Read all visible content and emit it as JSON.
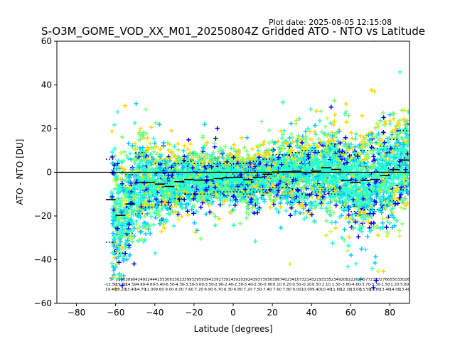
{
  "plot_date": "Plot date: 2025-08-05 12:15:08",
  "chart_data": {
    "type": "scatter",
    "title": "S-O3M_GOME_VOD_XX_M01_20250804Z Gridded ATO - NTO vs Latitude",
    "xlabel": "Latitude [degrees]",
    "ylabel": "ATO - NTO [DU]",
    "xlim": [
      -90,
      90
    ],
    "ylim": [
      -60,
      60
    ],
    "xticks": [
      -80,
      -60,
      -40,
      -20,
      0,
      20,
      40,
      60,
      80
    ],
    "yticks": [
      -60,
      -40,
      -20,
      0,
      20,
      40,
      60
    ],
    "grid": false,
    "legend": "none",
    "colors": {
      "cyan": "#00c8ff",
      "aqua": "#29ffce",
      "lime": "#7dff7a",
      "yellow": "#ffd700",
      "blue": "#0000ff",
      "green": "#c4ff3a"
    },
    "zero_line": 0,
    "bins": [
      {
        "lat": -62.5,
        "mean": -12.5,
        "std": 19.4,
        "p_low": -32,
        "p_high": 6,
        "n": "5"
      },
      {
        "lat": -57.5,
        "mean": -19.7,
        "std": 18.2,
        "p_low": -37,
        "p_high": 0,
        "n": "2108"
      },
      {
        "lat": -52.5,
        "mean": -14.5,
        "std": 13.4,
        "p_low": -28,
        "p_high": -1,
        "n": "3890"
      },
      {
        "lat": -47.5,
        "mean": -4.6,
        "std": 14.7,
        "p_low": -19,
        "p_high": 9,
        "n": "4249"
      },
      {
        "lat": -42.5,
        "mean": -4.6,
        "std": 11.0,
        "p_low": -16,
        "p_high": 7,
        "n": "3244"
      },
      {
        "lat": -37.5,
        "mean": -5.4,
        "std": 9.6,
        "p_low": -15,
        "p_high": 4,
        "n": "4155"
      },
      {
        "lat": -32.5,
        "mean": -6.5,
        "std": 9.0,
        "p_low": -15,
        "p_high": 2,
        "n": "3081"
      },
      {
        "lat": -27.5,
        "mean": -4.3,
        "std": 8.0,
        "p_low": -12,
        "p_high": 4,
        "n": "3023"
      },
      {
        "lat": -22.5,
        "mean": -3.3,
        "std": 7.6,
        "p_low": -10,
        "p_high": 5,
        "n": "3993"
      },
      {
        "lat": -17.5,
        "mean": -3.6,
        "std": 7.2,
        "p_low": -10,
        "p_high": 4,
        "n": "3959"
      },
      {
        "lat": -12.5,
        "mean": -3.5,
        "std": 6.9,
        "p_low": -10,
        "p_high": 3,
        "n": "3943"
      },
      {
        "lat": -7.5,
        "mean": -2.9,
        "std": 6.7,
        "p_low": -9,
        "p_high": 4,
        "n": "3927"
      },
      {
        "lat": -2.5,
        "mean": -2.4,
        "std": 6.3,
        "p_low": -9,
        "p_high": 4,
        "n": "3914"
      },
      {
        "lat": 2.5,
        "mean": -2.3,
        "std": 6.8,
        "p_low": -9,
        "p_high": 4,
        "n": "3910"
      },
      {
        "lat": 7.5,
        "mean": -3.4,
        "std": 7.2,
        "p_low": -10,
        "p_high": 4,
        "n": "3924"
      },
      {
        "lat": 12.5,
        "mean": -2.3,
        "std": 7.5,
        "p_low": -9,
        "p_high": 5,
        "n": "3937"
      },
      {
        "lat": 17.5,
        "mean": -0.9,
        "std": 7.4,
        "p_low": -8,
        "p_high": 6,
        "n": "3950"
      },
      {
        "lat": 22.5,
        "mean": 0.1,
        "std": 7.6,
        "p_low": -7,
        "p_high": 8,
        "n": "3987"
      },
      {
        "lat": 27.5,
        "mean": 0.2,
        "std": 7.8,
        "p_low": -7,
        "p_high": 8,
        "n": "4023"
      },
      {
        "lat": 32.5,
        "mean": 0.5,
        "std": 9.0,
        "p_low": -8,
        "p_high": 9,
        "n": "4107"
      },
      {
        "lat": 37.5,
        "mean": -0.1,
        "std": 10.0,
        "p_low": -10,
        "p_high": 10,
        "n": "3214"
      },
      {
        "lat": 42.5,
        "mean": 0.5,
        "std": 9.4,
        "p_low": -9,
        "p_high": 10,
        "n": "3219"
      },
      {
        "lat": 47.5,
        "mean": 2.1,
        "std": 10.4,
        "p_low": -8,
        "p_high": 12,
        "n": "3335"
      },
      {
        "lat": 52.5,
        "mean": 1.3,
        "std": 11.6,
        "p_low": -10,
        "p_high": 13,
        "n": "2349"
      },
      {
        "lat": 57.5,
        "mean": -3.8,
        "std": 12.3,
        "p_low": -16,
        "p_high": 9,
        "n": "2082"
      },
      {
        "lat": 62.5,
        "mean": -4.6,
        "std": 13.0,
        "p_low": -18,
        "p_high": 8,
        "n": "2262"
      },
      {
        "lat": 67.5,
        "mean": -3.7,
        "std": 13.5,
        "p_low": -17,
        "p_high": 10,
        "n": "4577"
      },
      {
        "lat": 72.5,
        "mean": -3.3,
        "std": 13.8,
        "p_low": -17,
        "p_high": 11,
        "n": "2737"
      },
      {
        "lat": 77.5,
        "mean": -1.5,
        "std": 13.4,
        "p_low": -15,
        "p_high": 12,
        "n": "2766"
      },
      {
        "lat": 82.5,
        "mean": 1.2,
        "std": 14.0,
        "p_low": -13,
        "p_high": 15,
        "n": "5503"
      },
      {
        "lat": 87.5,
        "mean": 5.6,
        "std": 13.4,
        "p_low": -8,
        "p_high": 19,
        "n": "3026"
      }
    ]
  }
}
